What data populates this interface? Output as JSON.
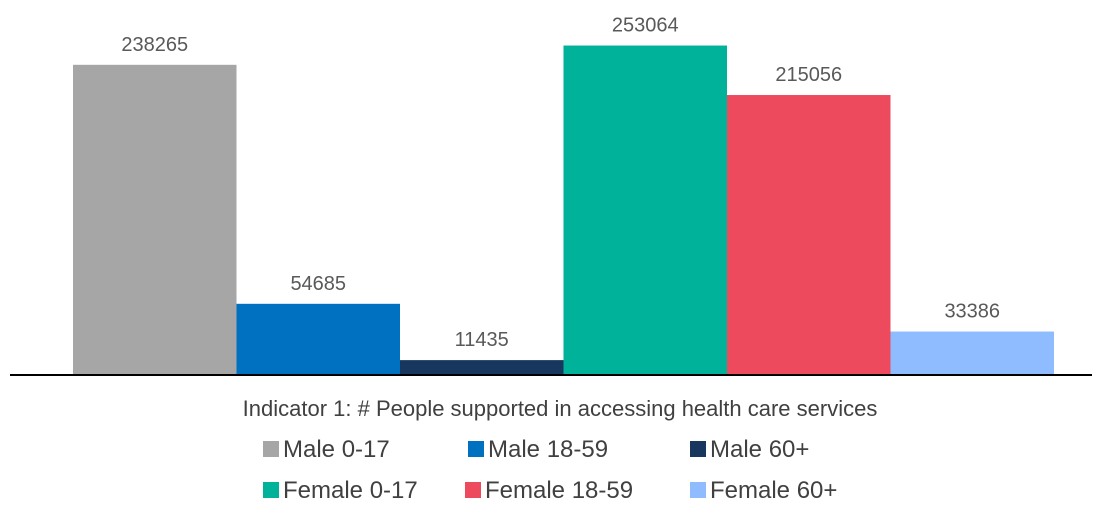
{
  "chart_data": {
    "type": "bar",
    "categories": [
      "Indicator 1: # People supported in accessing health care services"
    ],
    "series": [
      {
        "name": "Male 0-17",
        "values": [
          238265
        ],
        "color": "#a6a6a6"
      },
      {
        "name": "Male 18-59",
        "values": [
          54685
        ],
        "color": "#0070c0"
      },
      {
        "name": "Male 60+",
        "values": [
          11435
        ],
        "color": "#17375e"
      },
      {
        "name": "Female 0-17",
        "values": [
          253064
        ],
        "color": "#00b29a"
      },
      {
        "name": "Female 18-59",
        "values": [
          215056
        ],
        "color": "#ee4a5e"
      },
      {
        "name": "Female 60+",
        "values": [
          33386
        ],
        "color": "#8fbcff"
      }
    ],
    "ylim": [
      0,
      265000
    ],
    "grid": false,
    "legend_position": "bottom",
    "data_labels": true
  }
}
